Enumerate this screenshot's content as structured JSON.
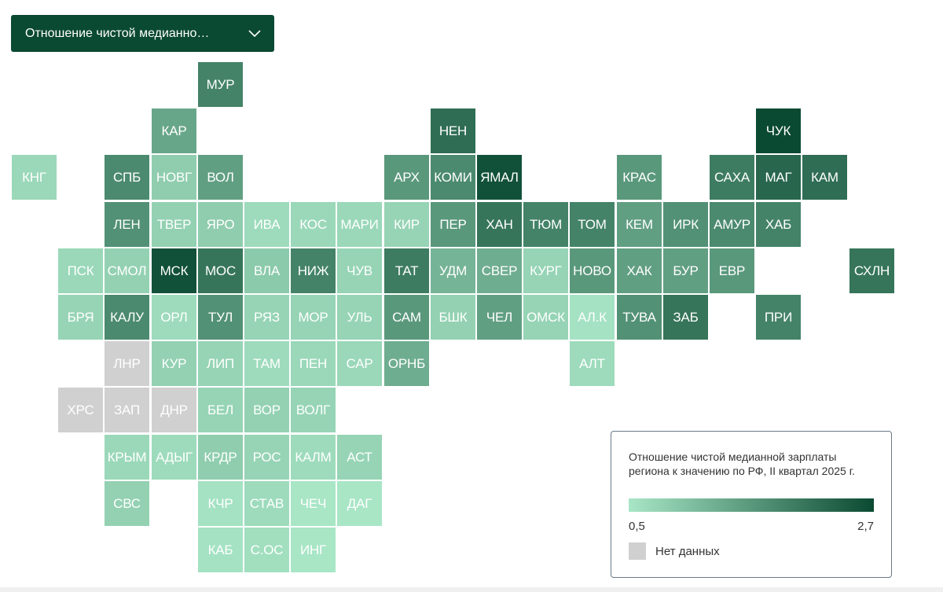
{
  "dropdown": {
    "label": "Отношение чистой медианно…",
    "icon": "chevron-down-icon"
  },
  "legend": {
    "title": "Отношение чистой медианной зарплаты региона к значению по РФ, II квартал 2025 г.",
    "min_label": "0,5",
    "max_label": "2,7",
    "min_value": 0.5,
    "max_value": 2.7,
    "color_low": "#a8e6c6",
    "color_high": "#0b4a32",
    "no_data_label": "Нет данных",
    "no_data_color": "#d0d0d0"
  },
  "regions": [
    {
      "label": "МУР",
      "col": 4,
      "row": 0,
      "value": 1.9
    },
    {
      "label": "КАР",
      "col": 3,
      "row": 1,
      "value": 1.4
    },
    {
      "label": "НЕН",
      "col": 9,
      "row": 1,
      "value": 2.2
    },
    {
      "label": "ЧУК",
      "col": 16,
      "row": 1,
      "value": 2.7
    },
    {
      "label": "КНГ",
      "col": 0,
      "row": 2,
      "value": 0.7
    },
    {
      "label": "СПБ",
      "col": 2,
      "row": 2,
      "value": 1.8
    },
    {
      "label": "НОВГ",
      "col": 3,
      "row": 2,
      "value": 0.85
    },
    {
      "label": "ВОЛ",
      "col": 4,
      "row": 2,
      "value": 1.5
    },
    {
      "label": "АРХ",
      "col": 8,
      "row": 2,
      "value": 1.6
    },
    {
      "label": "КОМИ",
      "col": 9,
      "row": 2,
      "value": 1.8
    },
    {
      "label": "ЯМАЛ",
      "col": 10,
      "row": 2,
      "value": 2.6
    },
    {
      "label": "КРАС",
      "col": 13,
      "row": 2,
      "value": 1.6
    },
    {
      "label": "САХА",
      "col": 15,
      "row": 2,
      "value": 2.0
    },
    {
      "label": "МАГ",
      "col": 16,
      "row": 2,
      "value": 2.3
    },
    {
      "label": "КАМ",
      "col": 17,
      "row": 2,
      "value": 2.2
    },
    {
      "label": "ЛЕН",
      "col": 2,
      "row": 3,
      "value": 1.7
    },
    {
      "label": "ТВЕР",
      "col": 3,
      "row": 3,
      "value": 0.8
    },
    {
      "label": "ЯРО",
      "col": 4,
      "row": 3,
      "value": 0.85
    },
    {
      "label": "ИВА",
      "col": 5,
      "row": 3,
      "value": 0.65
    },
    {
      "label": "КОС",
      "col": 6,
      "row": 3,
      "value": 0.7
    },
    {
      "label": "МАРИ",
      "col": 7,
      "row": 3,
      "value": 0.7
    },
    {
      "label": "КИР",
      "col": 8,
      "row": 3,
      "value": 0.75
    },
    {
      "label": "ПЕР",
      "col": 9,
      "row": 3,
      "value": 1.6
    },
    {
      "label": "ХАН",
      "col": 10,
      "row": 3,
      "value": 2.1
    },
    {
      "label": "ТЮМ",
      "col": 11,
      "row": 3,
      "value": 1.9
    },
    {
      "label": "ТОМ",
      "col": 12,
      "row": 3,
      "value": 1.9
    },
    {
      "label": "КЕМ",
      "col": 13,
      "row": 3,
      "value": 1.5
    },
    {
      "label": "ИРК",
      "col": 14,
      "row": 3,
      "value": 1.7
    },
    {
      "label": "АМУР",
      "col": 15,
      "row": 3,
      "value": 1.8
    },
    {
      "label": "ХАБ",
      "col": 16,
      "row": 3,
      "value": 1.9
    },
    {
      "label": "ПСК",
      "col": 1,
      "row": 4,
      "value": 0.7
    },
    {
      "label": "СМОЛ",
      "col": 2,
      "row": 4,
      "value": 0.8
    },
    {
      "label": "МСК",
      "col": 3,
      "row": 4,
      "value": 2.6
    },
    {
      "label": "МОС",
      "col": 4,
      "row": 4,
      "value": 2.1
    },
    {
      "label": "ВЛА",
      "col": 5,
      "row": 4,
      "value": 0.9
    },
    {
      "label": "НИЖ",
      "col": 6,
      "row": 4,
      "value": 1.9
    },
    {
      "label": "ЧУВ",
      "col": 7,
      "row": 4,
      "value": 0.75
    },
    {
      "label": "ТАТ",
      "col": 8,
      "row": 4,
      "value": 2.0
    },
    {
      "label": "УДМ",
      "col": 9,
      "row": 4,
      "value": 1.2
    },
    {
      "label": "СВЕР",
      "col": 10,
      "row": 4,
      "value": 1.3
    },
    {
      "label": "КУРГ",
      "col": 11,
      "row": 4,
      "value": 0.75
    },
    {
      "label": "НОВО",
      "col": 12,
      "row": 4,
      "value": 1.6
    },
    {
      "label": "ХАК",
      "col": 13,
      "row": 4,
      "value": 1.5
    },
    {
      "label": "БУР",
      "col": 14,
      "row": 4,
      "value": 1.5
    },
    {
      "label": "ЕВР",
      "col": 15,
      "row": 4,
      "value": 1.6
    },
    {
      "label": "СХЛН",
      "col": 18,
      "row": 4,
      "value": 2.1
    },
    {
      "label": "БРЯ",
      "col": 1,
      "row": 5,
      "value": 0.75
    },
    {
      "label": "КАЛУ",
      "col": 2,
      "row": 5,
      "value": 1.8
    },
    {
      "label": "ОРЛ",
      "col": 3,
      "row": 5,
      "value": 0.65
    },
    {
      "label": "ТУЛ",
      "col": 4,
      "row": 5,
      "value": 1.7
    },
    {
      "label": "РЯЗ",
      "col": 5,
      "row": 5,
      "value": 0.75
    },
    {
      "label": "МОР",
      "col": 6,
      "row": 5,
      "value": 0.75
    },
    {
      "label": "УЛЬ",
      "col": 7,
      "row": 5,
      "value": 0.75
    },
    {
      "label": "САМ",
      "col": 8,
      "row": 5,
      "value": 1.6
    },
    {
      "label": "БШК",
      "col": 9,
      "row": 5,
      "value": 0.8
    },
    {
      "label": "ЧЕЛ",
      "col": 10,
      "row": 5,
      "value": 1.5
    },
    {
      "label": "ОМСК",
      "col": 11,
      "row": 5,
      "value": 0.75
    },
    {
      "label": "АЛ.К",
      "col": 12,
      "row": 5,
      "value": 0.55
    },
    {
      "label": "ТУВА",
      "col": 13,
      "row": 5,
      "value": 1.7
    },
    {
      "label": "ЗАБ",
      "col": 14,
      "row": 5,
      "value": 2.1
    },
    {
      "label": "ПРИ",
      "col": 16,
      "row": 5,
      "value": 1.9
    },
    {
      "label": "ЛНР",
      "col": 2,
      "row": 6,
      "value": null
    },
    {
      "label": "КУР",
      "col": 3,
      "row": 6,
      "value": 0.8
    },
    {
      "label": "ЛИП",
      "col": 4,
      "row": 6,
      "value": 0.75
    },
    {
      "label": "ТАМ",
      "col": 5,
      "row": 6,
      "value": 0.65
    },
    {
      "label": "ПЕН",
      "col": 6,
      "row": 6,
      "value": 0.7
    },
    {
      "label": "САР",
      "col": 7,
      "row": 6,
      "value": 0.7
    },
    {
      "label": "ОРНБ",
      "col": 8,
      "row": 6,
      "value": 1.3
    },
    {
      "label": "АЛТ",
      "col": 12,
      "row": 6,
      "value": 0.65
    },
    {
      "label": "ХРС",
      "col": 1,
      "row": 7,
      "value": null
    },
    {
      "label": "ЗАП",
      "col": 2,
      "row": 7,
      "value": null
    },
    {
      "label": "ДНР",
      "col": 3,
      "row": 7,
      "value": null
    },
    {
      "label": "БЕЛ",
      "col": 4,
      "row": 7,
      "value": 0.75
    },
    {
      "label": "ВОР",
      "col": 5,
      "row": 7,
      "value": 0.8
    },
    {
      "label": "ВОЛГ",
      "col": 6,
      "row": 7,
      "value": 0.75
    },
    {
      "label": "КРЫМ",
      "col": 2,
      "row": 8,
      "value": 0.7
    },
    {
      "label": "АДЫГ",
      "col": 3,
      "row": 8,
      "value": 0.65
    },
    {
      "label": "КРДР",
      "col": 4,
      "row": 8,
      "value": 0.85
    },
    {
      "label": "РОС",
      "col": 5,
      "row": 8,
      "value": 0.75
    },
    {
      "label": "КАЛМ",
      "col": 6,
      "row": 8,
      "value": 0.65
    },
    {
      "label": "АСТ",
      "col": 7,
      "row": 8,
      "value": 0.75
    },
    {
      "label": "СВС",
      "col": 2,
      "row": 9,
      "value": 0.8
    },
    {
      "label": "КЧР",
      "col": 4,
      "row": 9,
      "value": 0.55
    },
    {
      "label": "СТАВ",
      "col": 5,
      "row": 9,
      "value": 0.65
    },
    {
      "label": "ЧЕЧ",
      "col": 6,
      "row": 9,
      "value": 0.5
    },
    {
      "label": "ДАГ",
      "col": 7,
      "row": 9,
      "value": 0.5
    },
    {
      "label": "КАБ",
      "col": 4,
      "row": 10,
      "value": 0.55
    },
    {
      "label": "С.ОС",
      "col": 5,
      "row": 10,
      "value": 0.6
    },
    {
      "label": "ИНГ",
      "col": 6,
      "row": 10,
      "value": 0.5
    }
  ]
}
